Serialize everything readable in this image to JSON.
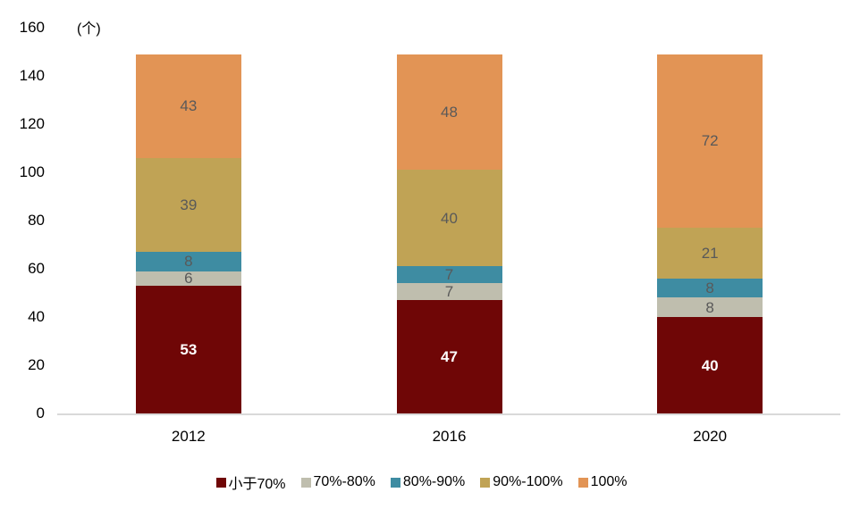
{
  "chart_data": {
    "type": "bar",
    "stacked": true,
    "title": "",
    "ylabel": "(个)",
    "xlabel": "",
    "categories": [
      "2012",
      "2016",
      "2020"
    ],
    "series": [
      {
        "name": "小于70%",
        "color": "#6F0606",
        "label_color": "#FFFFFF",
        "values": [
          53,
          47,
          40
        ]
      },
      {
        "name": "70%-80%",
        "color": "#BFBEAE",
        "label_color": "#595959",
        "values": [
          6,
          7,
          8
        ]
      },
      {
        "name": "80%-90%",
        "color": "#3E8CA2",
        "label_color": "#595959",
        "values": [
          8,
          7,
          8
        ]
      },
      {
        "name": "90%-100%",
        "color": "#C0A355",
        "label_color": "#595959",
        "values": [
          39,
          40,
          21
        ]
      },
      {
        "name": "100%",
        "color": "#E29455",
        "label_color": "#595959",
        "values": [
          43,
          48,
          72
        ]
      }
    ],
    "totals": [
      149,
      149,
      149
    ],
    "ylim": [
      0,
      160
    ],
    "ytick_step": 20,
    "y_ticks": [
      0,
      20,
      40,
      60,
      80,
      100,
      120,
      140,
      160
    ],
    "grid": false,
    "legend_position": "bottom",
    "colors": {
      "axis_line": "#D9D9D9",
      "tick_text": "#000000",
      "value_label_dark": "#595959",
      "value_label_light": "#FFFFFF"
    }
  }
}
